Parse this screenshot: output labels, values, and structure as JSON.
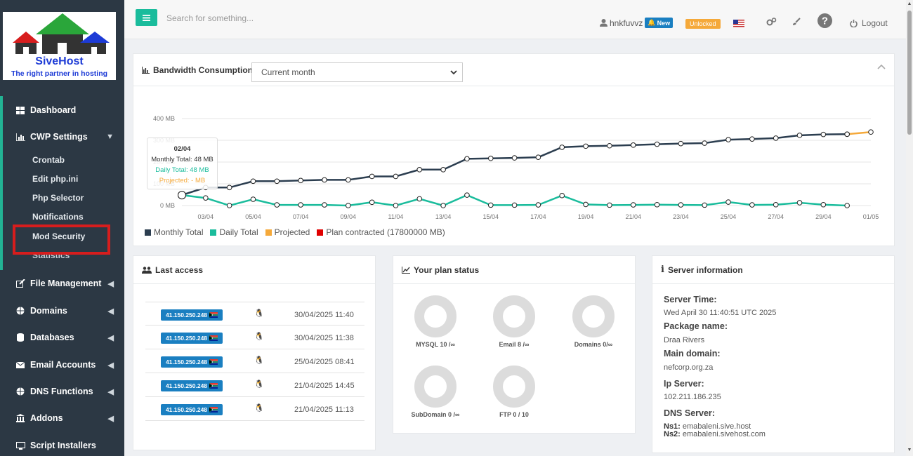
{
  "brand": {
    "name": "SiveHost",
    "tagline": "The right partner in hosting"
  },
  "topbar": {
    "search_placeholder": "Search for something...",
    "username": "hnkfuvvz",
    "new_badge": "New",
    "unlocked_badge": "Unlocked",
    "logout_label": "Logout"
  },
  "sidebar": {
    "items": [
      {
        "label": "Dashboard",
        "icon": "dashboard-icon"
      },
      {
        "label": "CWP Settings",
        "icon": "bar-chart-icon"
      },
      {
        "label": "File Management",
        "icon": "edit-icon"
      },
      {
        "label": "Domains",
        "icon": "globe-icon"
      },
      {
        "label": "Databases",
        "icon": "database-icon"
      },
      {
        "label": "Email Accounts",
        "icon": "envelope-icon"
      },
      {
        "label": "DNS Functions",
        "icon": "globe-icon"
      },
      {
        "label": "Addons",
        "icon": "bank-icon"
      },
      {
        "label": "Script Installers",
        "icon": "monitor-icon"
      }
    ],
    "sub_items": [
      "Crontab",
      "Edit php.ini",
      "Php Selector",
      "Notifications",
      "Mod Security",
      "Statistics"
    ]
  },
  "bandwidth": {
    "title": "Bandwidth Consumption",
    "period_select": "Current month",
    "tooltip": {
      "date": "02/04",
      "monthly": "Monthly Total: 48 MB",
      "daily": "Daily Total: 48 MB",
      "projected": "Projected: - MB"
    },
    "legend": [
      "Monthly Total",
      "Daily Total",
      "Projected",
      "Plan contracted (17800000 MB)"
    ]
  },
  "chart_data": {
    "type": "line",
    "yticks": [
      "0 MB",
      "100 MB",
      "200 MB",
      "300 MB",
      "400 MB"
    ],
    "ylim": [
      0,
      400
    ],
    "xticks": [
      "03/04",
      "05/04",
      "07/04",
      "09/04",
      "11/04",
      "13/04",
      "15/04",
      "17/04",
      "19/04",
      "21/04",
      "23/04",
      "25/04",
      "27/04",
      "29/04",
      "01/05"
    ],
    "x": [
      "02/04",
      "03/04",
      "04/04",
      "05/04",
      "06/04",
      "07/04",
      "08/04",
      "09/04",
      "10/04",
      "11/04",
      "12/04",
      "13/04",
      "14/04",
      "15/04",
      "16/04",
      "17/04",
      "18/04",
      "19/04",
      "20/04",
      "21/04",
      "22/04",
      "23/04",
      "24/04",
      "25/04",
      "26/04",
      "27/04",
      "28/04",
      "29/04",
      "30/04",
      "01/05"
    ],
    "series": [
      {
        "name": "Monthly Total",
        "color": "#2c3e50",
        "values": [
          48,
          83,
          83,
          112,
          112,
          115,
          118,
          118,
          134,
          134,
          165,
          165,
          215,
          217,
          219,
          222,
          268,
          273,
          275,
          278,
          282,
          285,
          287,
          303,
          306,
          310,
          323,
          327,
          328,
          null
        ]
      },
      {
        "name": "Daily Total",
        "color": "#1abc9c",
        "values": [
          48,
          35,
          0,
          29,
          3,
          3,
          3,
          0,
          15,
          0,
          31,
          0,
          48,
          2,
          2,
          3,
          46,
          5,
          2,
          3,
          4,
          3,
          2,
          16,
          3,
          4,
          13,
          4,
          0,
          null
        ]
      },
      {
        "name": "Projected",
        "color": "#f5a93a",
        "values": [
          null,
          null,
          null,
          null,
          null,
          null,
          null,
          null,
          null,
          null,
          null,
          null,
          null,
          null,
          null,
          null,
          null,
          null,
          null,
          null,
          null,
          null,
          null,
          null,
          null,
          null,
          null,
          null,
          328,
          338
        ]
      }
    ]
  },
  "last_access": {
    "title": "Last access",
    "rows": [
      {
        "ip": "41.150.250.248",
        "date": "30/04/2025 11:40"
      },
      {
        "ip": "41.150.250.248",
        "date": "30/04/2025 11:38"
      },
      {
        "ip": "41.150.250.248",
        "date": "25/04/2025 08:41"
      },
      {
        "ip": "41.150.250.248",
        "date": "21/04/2025 14:45"
      },
      {
        "ip": "41.150.250.248",
        "date": "21/04/2025 11:13"
      }
    ]
  },
  "plan_status": {
    "title": "Your plan status",
    "items": [
      "MYSQL 10 /∞",
      "Email 8 /∞",
      "Domains 0/∞",
      "SubDomain 0 /∞",
      "FTP 0 / 10"
    ]
  },
  "server_info": {
    "title": "Server information",
    "server_time_label": "Server Time:",
    "server_time": "Wed April 30 11:40:51 UTC 2025",
    "package_label": "Package name:",
    "package": "Draa Rivers",
    "main_domain_label": "Main domain:",
    "main_domain": "nefcorp.org.za",
    "ip_label": "Ip Server:",
    "ip": "102.211.186.235",
    "dns_label": "DNS Server:",
    "ns1_label": "Ns1:",
    "ns1": "emabaleni.sive.host",
    "ns2_label": "Ns2:",
    "ns2": "emabaleni.sivehost.com"
  }
}
